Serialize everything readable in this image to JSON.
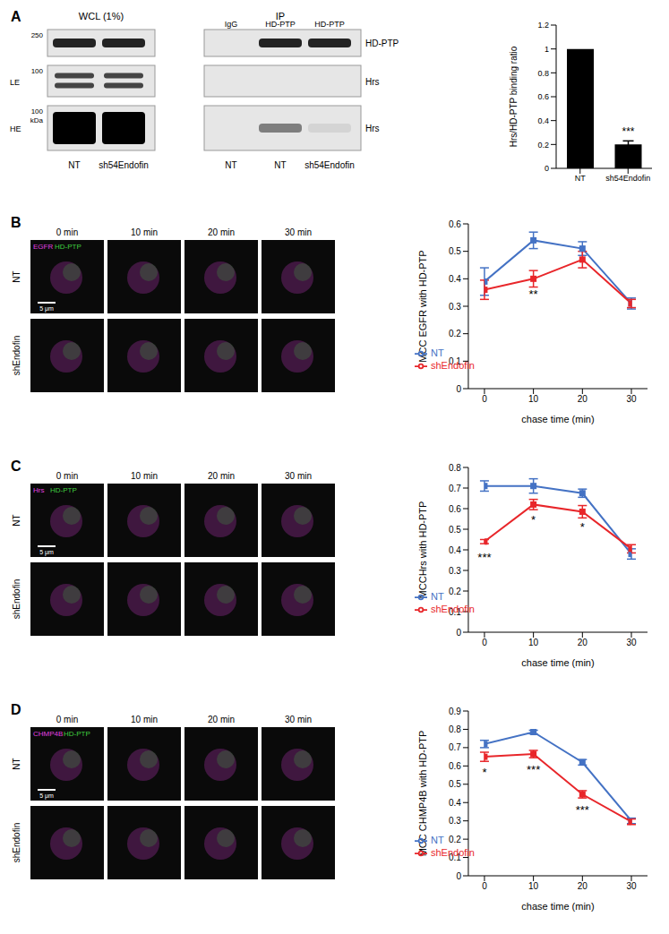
{
  "figure": {
    "panels": [
      {
        "letter": "A",
        "blot": {
          "wcl_title": "WCL (1%)",
          "ip_title": "IP",
          "wcl_lanes": [
            "NT",
            "sh54Endofin"
          ],
          "ip_lanes": [
            "IgG",
            "HD-PTP",
            "HD-PTP"
          ],
          "ip_conditions": [
            "NT",
            "NT",
            "sh54Endofin"
          ],
          "rows": [
            {
              "name": "HD-PTP",
              "marker": 250
            },
            {
              "name": "Hrs",
              "exposure": "LE",
              "marker": 100
            },
            {
              "name": "Hrs",
              "exposure": "HE",
              "marker": 100
            }
          ],
          "marker_unit": "kDa"
        }
      },
      {
        "letter": "B",
        "images": {
          "times": [
            "0 min",
            "10 min",
            "20 min",
            "30 min"
          ],
          "rows": [
            "NT",
            "shEndofin"
          ],
          "channels": [
            {
              "name": "EGFR",
              "color": "#e040e0"
            },
            {
              "name": "HD-PTP",
              "color": "#40d040"
            }
          ],
          "scale_bar": "5 μm"
        }
      },
      {
        "letter": "C",
        "images": {
          "times": [
            "0 min",
            "10 min",
            "20 min",
            "30 min"
          ],
          "rows": [
            "NT",
            "shEndofin"
          ],
          "channels": [
            {
              "name": "Hrs",
              "color": "#e040e0"
            },
            {
              "name": "HD-PTP",
              "color": "#40d040"
            }
          ],
          "scale_bar": "5 μm"
        }
      },
      {
        "letter": "D",
        "images": {
          "times": [
            "0 min",
            "10 min",
            "20 min",
            "30 min"
          ],
          "rows": [
            "NT",
            "shEndofin"
          ],
          "channels": [
            {
              "name": "CHMP4B",
              "color": "#e040e0"
            },
            {
              "name": "HD-PTP",
              "color": "#40d040"
            }
          ],
          "scale_bar": "5 μm"
        }
      }
    ]
  },
  "chart_data": [
    {
      "type": "bar",
      "categories": [
        "NT",
        "sh54Endofin"
      ],
      "values": [
        1,
        0.2
      ],
      "errors": [
        0,
        0.03
      ],
      "color": "#000000",
      "ylim": [
        0,
        1.2
      ],
      "yticks": [
        0,
        0.2,
        0.4,
        0.6,
        0.8,
        1,
        1.2
      ],
      "y_label": "Hrs/HD-PTP binding ratio",
      "annotations": [
        {
          "category": "sh54Endofin",
          "text": "***"
        }
      ],
      "grid": false
    },
    {
      "type": "line",
      "x": [
        0,
        10,
        20,
        30
      ],
      "xlim": [
        0,
        30
      ],
      "xticks": [
        0,
        10,
        20,
        30
      ],
      "x_label": "chase time (min)",
      "y_label": "MCC EGFR with HD-PTP",
      "ylim": [
        0,
        0.6
      ],
      "yticks": [
        0,
        0.1,
        0.2,
        0.3,
        0.4,
        0.5,
        0.6
      ],
      "series": [
        {
          "name": "NT",
          "color": "#4472c4",
          "marker": "square",
          "values": [
            0.39,
            0.54,
            0.51,
            0.31
          ],
          "errors": [
            0.05,
            0.03,
            0.025,
            0.02
          ]
        },
        {
          "name": "shEndofin",
          "color": "#e8262a",
          "marker": "square",
          "values": [
            0.36,
            0.4,
            0.47,
            0.31
          ],
          "errors": [
            0.035,
            0.03,
            0.03,
            0.015
          ]
        }
      ],
      "legend": "lower left",
      "annotations": [
        {
          "x": 10,
          "series": "shEndofin",
          "text": "**"
        }
      ],
      "grid": false
    },
    {
      "type": "line",
      "x": [
        0,
        10,
        20,
        30
      ],
      "xlim": [
        0,
        30
      ],
      "xticks": [
        0,
        10,
        20,
        30
      ],
      "x_label": "chase time (min)",
      "y_label": "MCCHrs with HD-PTP",
      "ylim": [
        0,
        0.8
      ],
      "yticks": [
        0,
        0.1,
        0.2,
        0.3,
        0.4,
        0.5,
        0.6,
        0.7,
        0.8
      ],
      "series": [
        {
          "name": "NT",
          "color": "#4472c4",
          "marker": "square",
          "values": [
            0.71,
            0.71,
            0.675,
            0.38
          ],
          "errors": [
            0.025,
            0.035,
            0.02,
            0.025
          ]
        },
        {
          "name": "shEndofin",
          "color": "#e8262a",
          "marker": "square",
          "values": [
            0.44,
            0.62,
            0.585,
            0.405
          ],
          "errors": [
            0.01,
            0.025,
            0.03,
            0.02
          ]
        }
      ],
      "legend": "lower left",
      "annotations": [
        {
          "x": 0,
          "series": "shEndofin",
          "text": "***"
        },
        {
          "x": 10,
          "series": "shEndofin",
          "text": "*"
        },
        {
          "x": 20,
          "series": "shEndofin",
          "text": "*"
        }
      ],
      "grid": false
    },
    {
      "type": "line",
      "x": [
        0,
        10,
        20,
        30
      ],
      "xlim": [
        0,
        30
      ],
      "xticks": [
        0,
        10,
        20,
        30
      ],
      "x_label": "chase time (min)",
      "y_label": "MCC CHMP4B with HD-PTP",
      "ylim": [
        0,
        0.9
      ],
      "yticks": [
        0,
        0.1,
        0.2,
        0.3,
        0.4,
        0.5,
        0.6,
        0.7,
        0.8,
        0.9
      ],
      "series": [
        {
          "name": "NT",
          "color": "#4472c4",
          "marker": "square",
          "values": [
            0.72,
            0.785,
            0.62,
            0.3
          ],
          "errors": [
            0.02,
            0.01,
            0.015,
            0.015
          ]
        },
        {
          "name": "shEndofin",
          "color": "#e8262a",
          "marker": "square",
          "values": [
            0.65,
            0.665,
            0.445,
            0.295
          ],
          "errors": [
            0.025,
            0.02,
            0.02,
            0.015
          ]
        }
      ],
      "legend": "lower left",
      "annotations": [
        {
          "x": 0,
          "series": "shEndofin",
          "text": "*"
        },
        {
          "x": 10,
          "series": "shEndofin",
          "text": "***"
        },
        {
          "x": 20,
          "series": "shEndofin",
          "text": "***"
        }
      ],
      "grid": false
    }
  ]
}
